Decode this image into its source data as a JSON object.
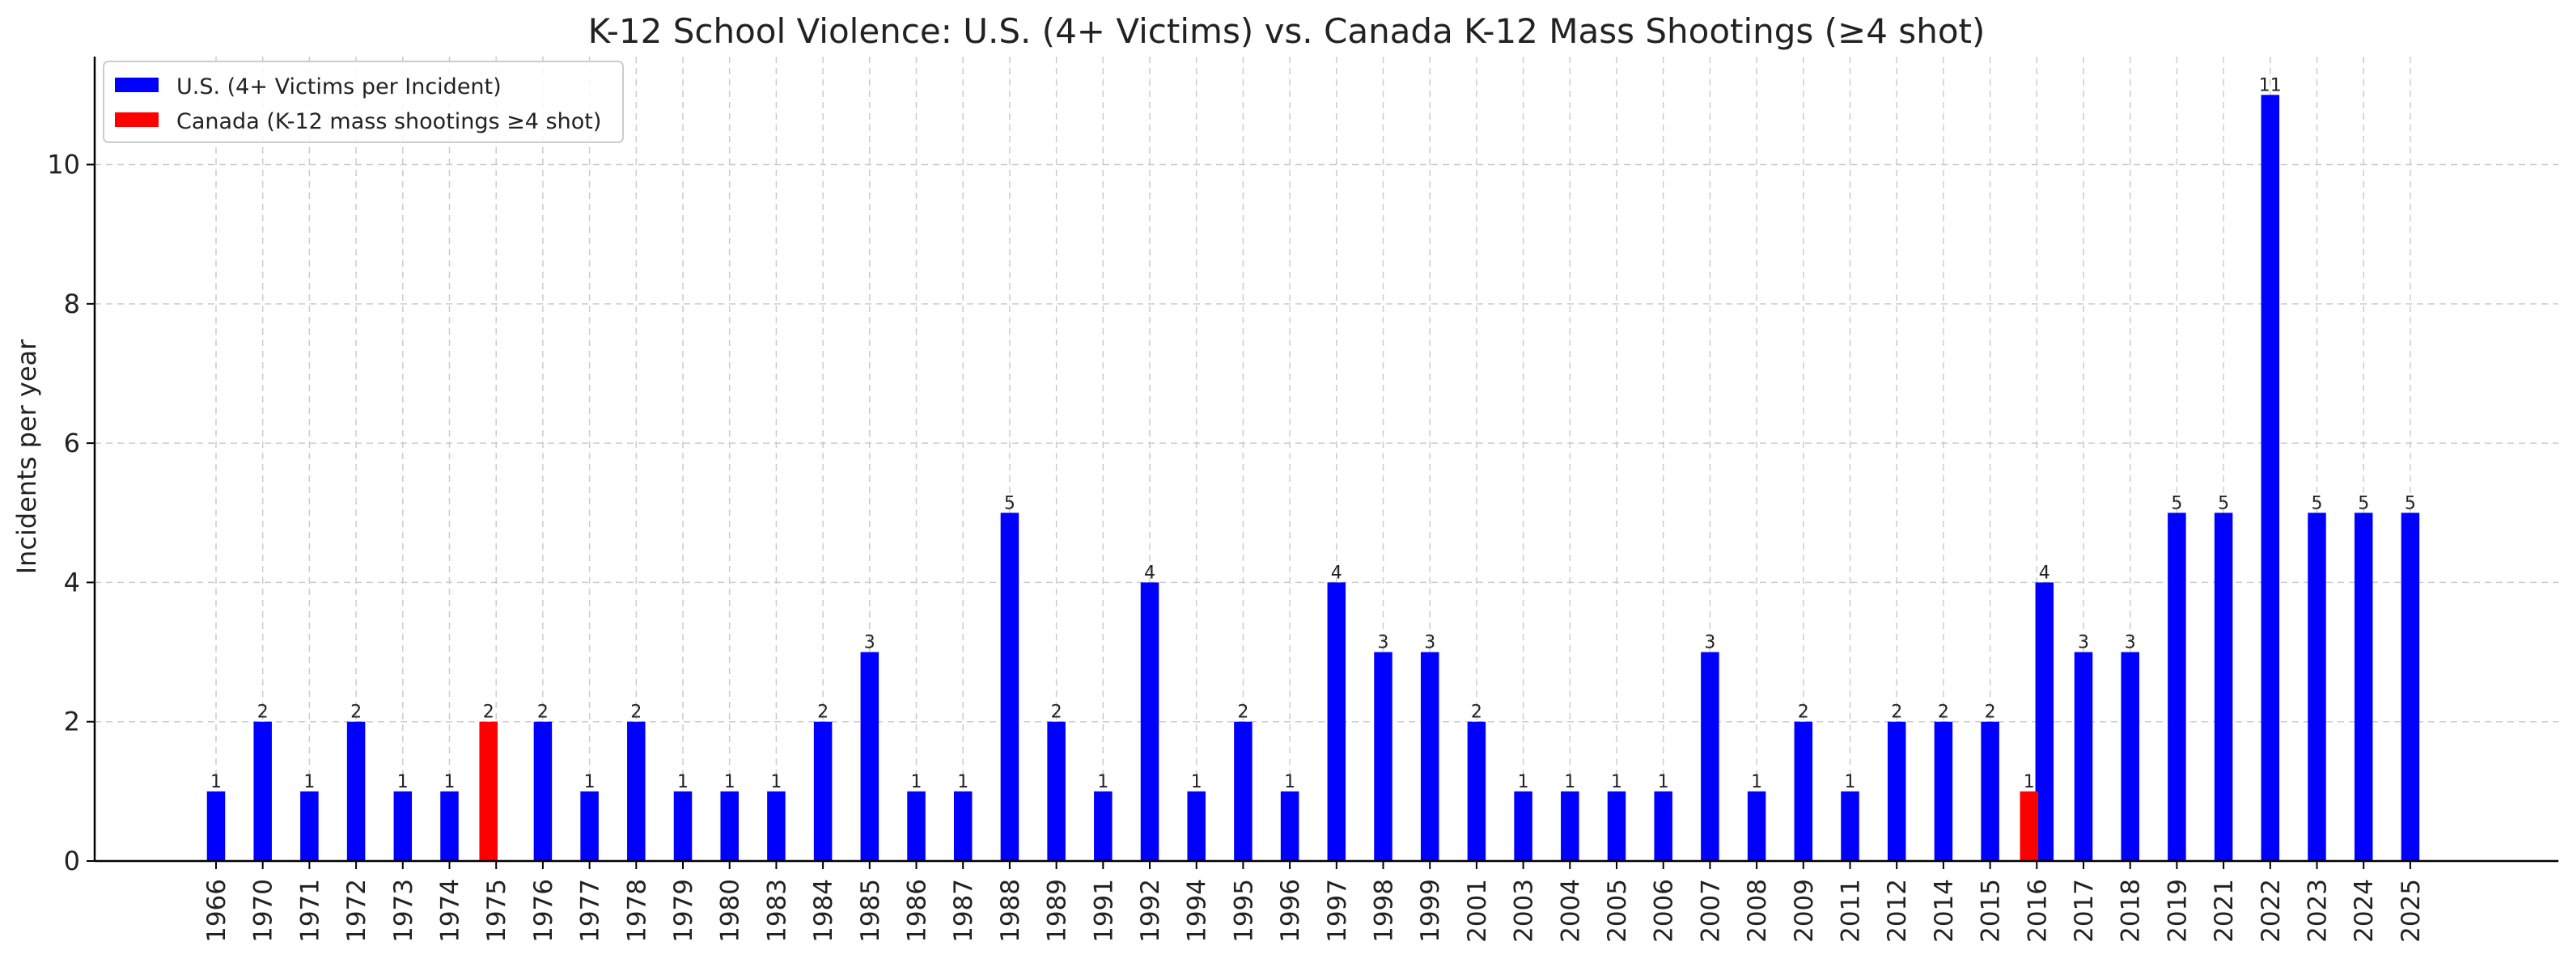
{
  "chart_data": {
    "type": "bar",
    "title": "K-12 School Violence: U.S. (4+ Victims) vs. Canada K-12 Mass Shootings (≥4 shot)",
    "xlabel": "",
    "ylabel": "Incidents per year",
    "ylim": [
      0,
      11.55
    ],
    "yticks": [
      "0",
      "2",
      "4",
      "6",
      "8",
      "10"
    ],
    "grid": true,
    "legend_position": "top-left",
    "categories": [
      "1966",
      "1970",
      "1971",
      "1972",
      "1973",
      "1974",
      "1975",
      "1976",
      "1977",
      "1978",
      "1979",
      "1980",
      "1983",
      "1984",
      "1985",
      "1986",
      "1987",
      "1988",
      "1989",
      "1991",
      "1992",
      "1994",
      "1995",
      "1996",
      "1997",
      "1998",
      "1999",
      "2001",
      "2003",
      "2004",
      "2005",
      "2006",
      "2007",
      "2008",
      "2009",
      "2011",
      "2012",
      "2014",
      "2015",
      "2016",
      "2017",
      "2018",
      "2019",
      "2021",
      "2022",
      "2023",
      "2024",
      "2025"
    ],
    "series": [
      {
        "name": "U.S. (4+ Victims per Incident)",
        "color": "#0000ff",
        "values": [
          1,
          2,
          1,
          2,
          1,
          1,
          0,
          2,
          1,
          2,
          1,
          1,
          1,
          2,
          3,
          1,
          1,
          5,
          2,
          1,
          4,
          1,
          2,
          1,
          4,
          3,
          3,
          2,
          1,
          1,
          1,
          1,
          3,
          1,
          2,
          1,
          2,
          2,
          2,
          4,
          3,
          3,
          5,
          5,
          11,
          5,
          5,
          5
        ]
      },
      {
        "name": "Canada (K-12 mass shootings ≥4 shot)",
        "color": "#ff0000",
        "values": [
          0,
          0,
          0,
          0,
          0,
          0,
          2,
          0,
          0,
          0,
          0,
          0,
          0,
          0,
          0,
          0,
          0,
          0,
          0,
          0,
          0,
          0,
          0,
          0,
          0,
          0,
          0,
          0,
          0,
          0,
          0,
          0,
          0,
          0,
          0,
          0,
          0,
          0,
          0,
          1,
          0,
          0,
          0,
          0,
          0,
          0,
          0,
          0
        ]
      }
    ]
  }
}
